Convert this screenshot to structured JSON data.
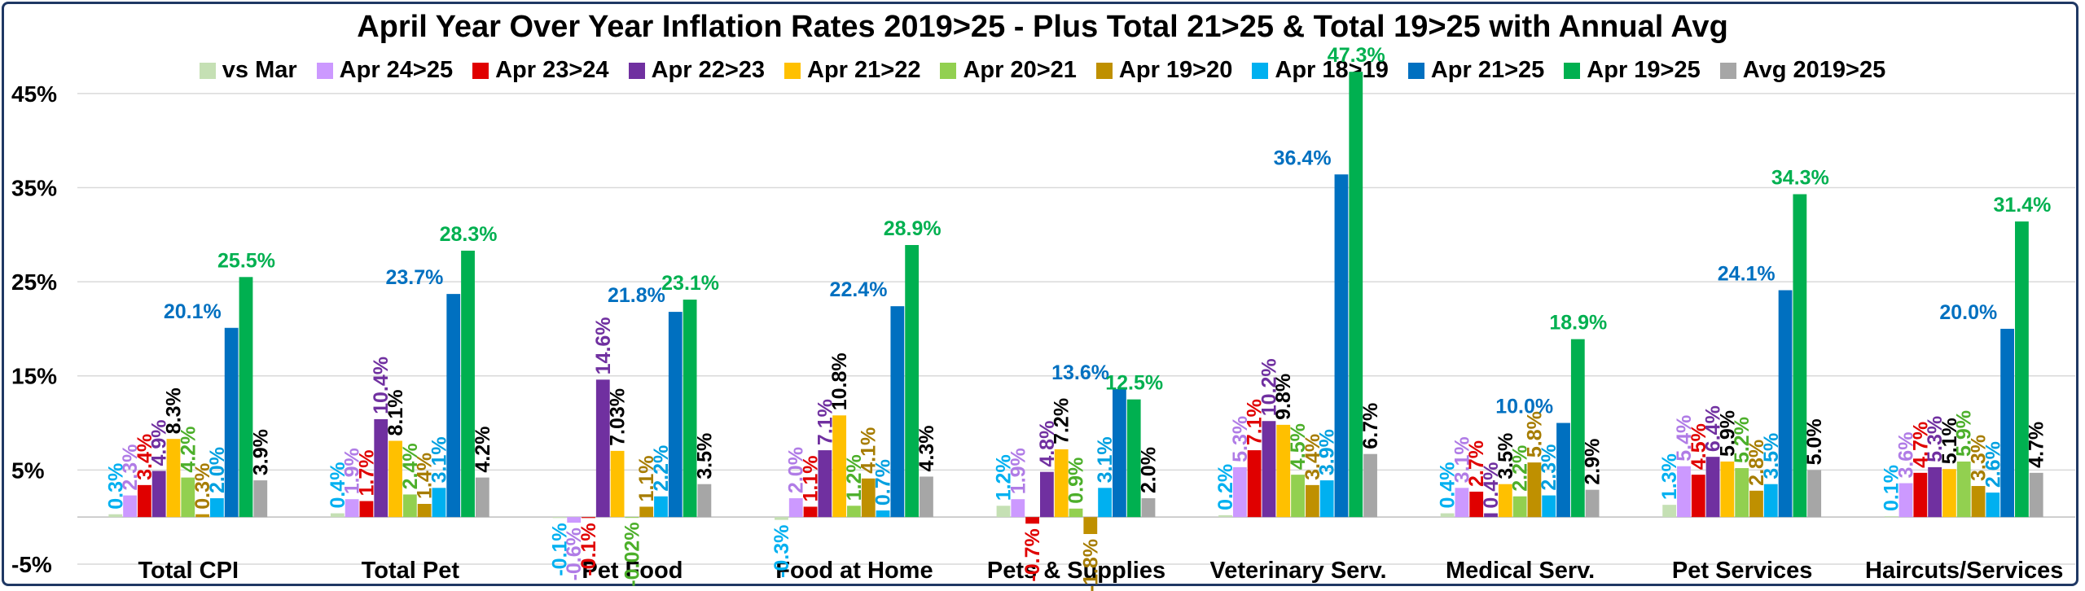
{
  "chart_data": {
    "type": "bar",
    "title": "April Year Over Year Inflation Rates 2019>25 - Plus Total 21>25 & Total 19>25 with Annual Avg",
    "xlabel": "",
    "ylabel": "",
    "ylim": [
      -5,
      50
    ],
    "grid": true,
    "legend_position": "top",
    "yticks": [
      "-5%",
      "5%",
      "15%",
      "25%",
      "35%",
      "45%"
    ],
    "ytick_values": [
      -5,
      5,
      15,
      25,
      35,
      45
    ],
    "categories": [
      "Total CPI",
      "Total Pet",
      "Pet Food",
      "Food at Home",
      "Pets & Supplies",
      "Veterinary Serv.",
      "Medical Serv.",
      "Pet Services",
      "Haircuts/Services"
    ],
    "series": [
      {
        "name": "vs Mar",
        "color": "#c5e0b4",
        "label_color": "#00b0f0",
        "values": [
          0.3,
          0.4,
          -0.1,
          -0.3,
          1.2,
          0.2,
          0.4,
          1.3,
          0.1
        ],
        "labels": [
          "0.3%",
          "0.4%",
          "-0.1%",
          "-0.3%",
          "1.2%",
          "0.2%",
          "0.4%",
          "1.3%",
          "0.1%"
        ]
      },
      {
        "name": "Apr 24>25",
        "color": "#cc99ff",
        "label_color": "#b07ce6",
        "values": [
          2.3,
          1.9,
          -0.6,
          2.0,
          1.9,
          5.3,
          3.1,
          5.4,
          3.6
        ],
        "labels": [
          "2.3%",
          "1.9%",
          "-0.6%",
          "2.0%",
          "1.9%",
          "5.3%",
          "3.1%",
          "5.4%",
          "3.6%"
        ]
      },
      {
        "name": "Apr 23>24",
        "color": "#e00000",
        "label_color": "#e00000",
        "values": [
          3.4,
          1.7,
          -0.1,
          1.1,
          -0.7,
          7.1,
          2.7,
          4.5,
          4.7
        ],
        "labels": [
          "3.4%",
          "1.7%",
          "-0.1%",
          "1.1%",
          "-0.7%",
          "7.1%",
          "2.7%",
          "4.5%",
          "4.7%"
        ]
      },
      {
        "name": "Apr 22>23",
        "color": "#7030a0",
        "label_color": "#7030a0",
        "values": [
          4.9,
          10.4,
          14.6,
          7.1,
          4.8,
          10.2,
          0.4,
          6.4,
          5.3
        ],
        "labels": [
          "4.9%",
          "10.4%",
          "14.6%",
          "7.1%",
          "4.8%",
          "10.2%",
          "0.4%",
          "6.4%",
          "5.3%"
        ]
      },
      {
        "name": "Apr 21>22",
        "color": "#ffc000",
        "label_color": "#000000",
        "values": [
          8.3,
          8.1,
          7.03,
          10.8,
          7.2,
          9.8,
          3.5,
          5.9,
          5.1
        ],
        "labels": [
          "8.3%",
          "8.1%",
          "7.03%",
          "10.8%",
          "7.2%",
          "9.8%",
          "3.5%",
          "5.9%",
          "5.1%"
        ]
      },
      {
        "name": "Apr 20>21",
        "color": "#92d050",
        "label_color": "#4caf2a",
        "values": [
          4.2,
          2.4,
          -0.02,
          1.2,
          0.9,
          4.5,
          2.2,
          5.2,
          5.9
        ],
        "labels": [
          "4.2%",
          "2.4%",
          "-0.02%",
          "1.2%",
          "0.9%",
          "4.5%",
          "2.2%",
          "5.2%",
          "5.9%"
        ]
      },
      {
        "name": "Apr 19>20",
        "color": "#bf9000",
        "label_color": "#a67c00",
        "values": [
          0.3,
          1.4,
          1.1,
          4.1,
          -1.8,
          3.4,
          5.8,
          2.8,
          3.3
        ],
        "labels": [
          "0.3%",
          "1.4%",
          "1.1%",
          "4.1%",
          "-1.8%",
          "3.4%",
          "5.8%",
          "2.8%",
          "3.3%"
        ]
      },
      {
        "name": "Apr 18>19",
        "color": "#00b0f0",
        "label_color": "#00a0e0",
        "values": [
          2.0,
          3.1,
          2.2,
          0.7,
          3.1,
          3.9,
          2.3,
          3.5,
          2.6
        ],
        "labels": [
          "2.0%",
          "3.1%",
          "2.2%",
          "0.7%",
          "3.1%",
          "3.9%",
          "2.3%",
          "3.5%",
          "2.6%"
        ]
      },
      {
        "name": "Apr 21>25",
        "color": "#0070c0",
        "label_color": "#0070c0",
        "values": [
          20.1,
          23.7,
          21.8,
          22.4,
          13.6,
          36.4,
          10.0,
          24.1,
          20.0
        ],
        "labels": [
          "20.1%",
          "23.7%",
          "21.8%",
          "22.4%",
          "13.6%",
          "36.4%",
          "10.0%",
          "24.1%",
          "20.0%"
        ]
      },
      {
        "name": "Apr 19>25",
        "color": "#00b050",
        "label_color": "#00b050",
        "values": [
          25.5,
          28.3,
          23.1,
          28.9,
          12.5,
          47.3,
          18.9,
          34.3,
          31.4
        ],
        "labels": [
          "25.5%",
          "28.3%",
          "23.1%",
          "28.9%",
          "12.5%",
          "47.3%",
          "18.9%",
          "34.3%",
          "31.4%"
        ]
      },
      {
        "name": "Avg 2019>25",
        "color": "#a6a6a6",
        "label_color": "#000000",
        "values": [
          3.9,
          4.2,
          3.5,
          4.3,
          2.0,
          6.7,
          2.9,
          5.0,
          4.7
        ],
        "labels": [
          "3.9%",
          "4.2%",
          "3.5%",
          "4.3%",
          "2.0%",
          "6.7%",
          "2.9%",
          "5.0%",
          "4.7%"
        ]
      }
    ]
  }
}
